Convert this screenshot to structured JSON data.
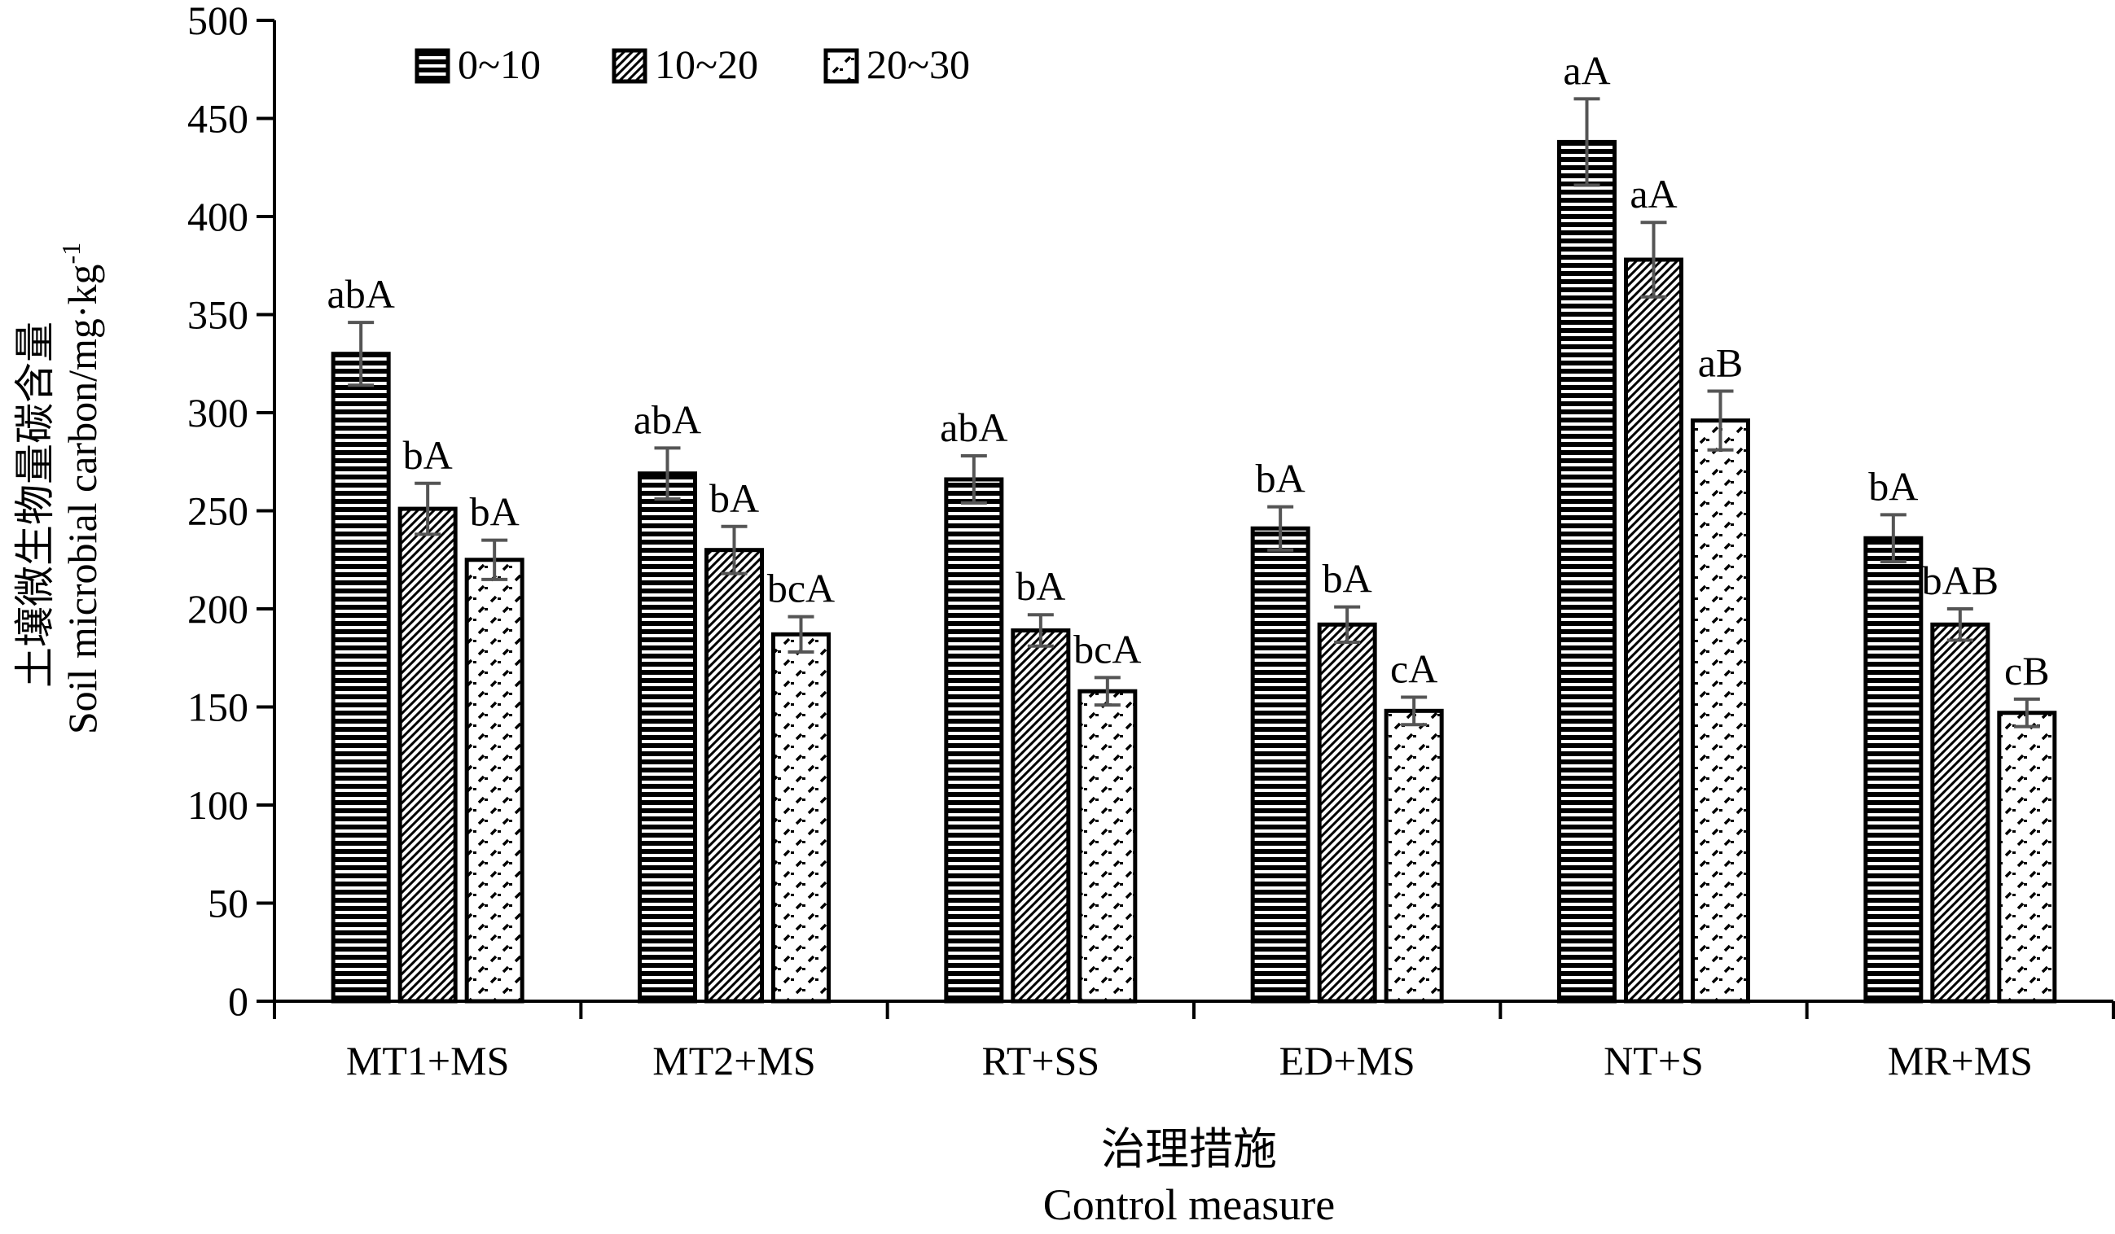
{
  "chart_data": {
    "type": "bar",
    "title": "",
    "ylabel_cn": "土壤微生物量碳含量",
    "ylabel_en": "Soil microbial carbon/mg·kg",
    "ylabel_sup": "-1",
    "xlabel_cn": "治理措施",
    "xlabel_en": "Control measure",
    "ylim": [
      0,
      500
    ],
    "yticks": [
      "0",
      "50",
      "100",
      "150",
      "200",
      "250",
      "300",
      "350",
      "400",
      "450",
      "500"
    ],
    "categories": [
      "MT1+MS",
      "MT2+MS",
      "RT+SS",
      "ED+MS",
      "NT+S",
      "MR+MS"
    ],
    "legend_position": "top-left",
    "grid": false,
    "series": [
      {
        "name": "0~10",
        "pattern": "horizontal-lines",
        "values": [
          330,
          269,
          266,
          241,
          438,
          236
        ],
        "errors": [
          16,
          13,
          12,
          11,
          22,
          12
        ],
        "labels": [
          "abA",
          "abA",
          "abA",
          "bA",
          "aA",
          "bA"
        ]
      },
      {
        "name": "10~20",
        "pattern": "diagonal-lines",
        "values": [
          251,
          230,
          189,
          192,
          378,
          192
        ],
        "errors": [
          13,
          12,
          8,
          9,
          19,
          8
        ],
        "labels": [
          "bA",
          "bA",
          "bA",
          "bA",
          "aA",
          "bAB"
        ]
      },
      {
        "name": "20~30",
        "pattern": "dashed-dots",
        "values": [
          225,
          187,
          158,
          148,
          296,
          147
        ],
        "errors": [
          10,
          9,
          7,
          7,
          15,
          7
        ],
        "labels": [
          "bA",
          "bcA",
          "bcA",
          "cA",
          "aB",
          "cB"
        ]
      }
    ]
  }
}
